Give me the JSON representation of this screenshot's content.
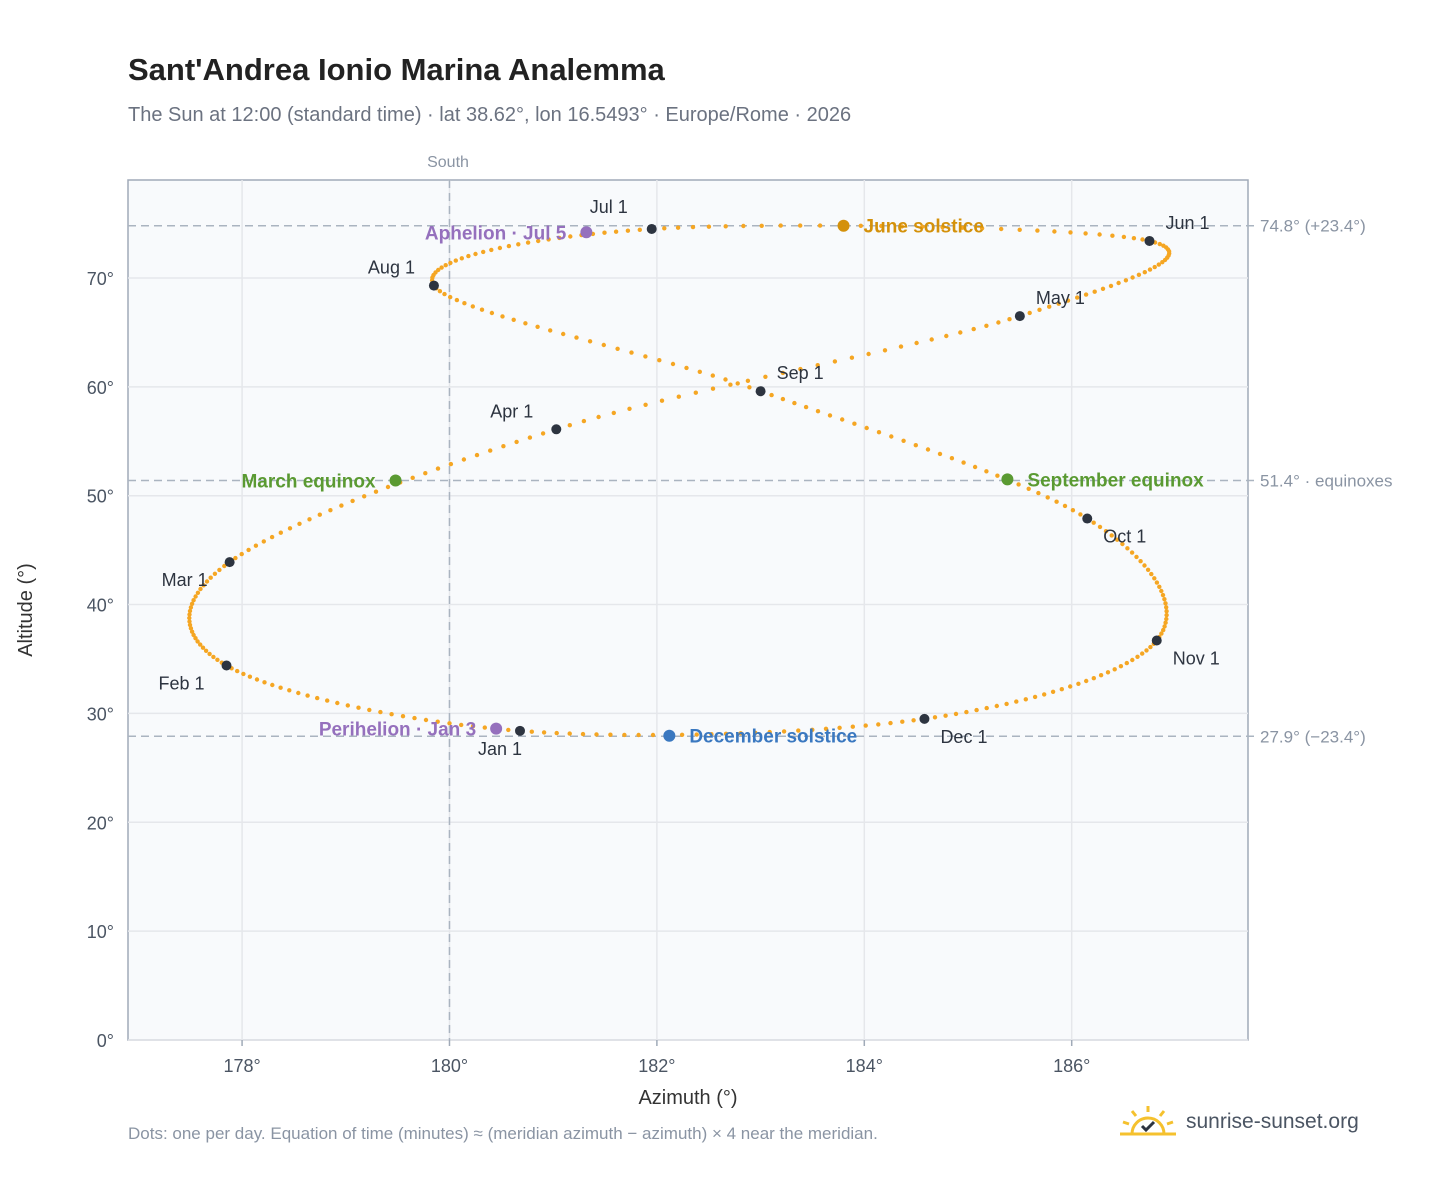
{
  "title": "Sant'Andrea Ionio Marina Analemma",
  "subtitle": "The Sun at 12:00 (standard time) · lat 38.62°, lon 16.5493° · Europe/Rome · 2026",
  "footnote": "Dots: one per day. Equation of time (minutes) ≈ (meridian azimuth − azimuth) × 4 near the meridian.",
  "brand": "sunrise-sunset.org",
  "colors": {
    "curve": "#f5a623",
    "month_marker": "#2d3440",
    "june_solstice": "#d4910a",
    "december_solstice": "#3a78c0",
    "equinox": "#5a9a32",
    "apsis": "#9570bd",
    "grid": "#e5e7eb",
    "reference_line": "#aab4c0",
    "plot_background": "#f8fafc"
  },
  "chart_data": {
    "type": "scatter",
    "xlabel": "Azimuth (°)",
    "ylabel": "Altitude (°)",
    "xlim": [
      176.9,
      187.7
    ],
    "ylim": [
      0,
      79
    ],
    "x_ticks": [
      178,
      180,
      182,
      184,
      186
    ],
    "x_tick_labels": [
      "178°",
      "180°",
      "182°",
      "184°",
      "186°"
    ],
    "y_ticks": [
      0,
      10,
      20,
      30,
      40,
      50,
      60,
      70
    ],
    "y_tick_labels": [
      "0°",
      "10°",
      "20°",
      "30°",
      "40°",
      "50°",
      "60°",
      "70°"
    ],
    "grid": true,
    "meridian": {
      "azimuth": 180,
      "label": "South"
    },
    "reference_lines": [
      {
        "altitude": 74.8,
        "label": "74.8° (+23.4°)"
      },
      {
        "altitude": 51.4,
        "label": "51.4° · equinoxes"
      },
      {
        "altitude": 27.9,
        "label": "27.9° (−23.4°)"
      }
    ],
    "daily_positions": [
      {
        "label": "Jan 1",
        "azimuth": 180.68,
        "altitude": 28.4
      },
      {
        "label": "Feb 1",
        "azimuth": 177.85,
        "altitude": 34.4
      },
      {
        "label": "Mar 1",
        "azimuth": 177.88,
        "altitude": 43.9
      },
      {
        "label": "Apr 1",
        "azimuth": 181.03,
        "altitude": 56.1
      },
      {
        "label": "May 1",
        "azimuth": 185.5,
        "altitude": 66.5
      },
      {
        "label": "Jun 1",
        "azimuth": 186.75,
        "altitude": 73.4
      },
      {
        "label": "Jul 1",
        "azimuth": 181.95,
        "altitude": 74.5
      },
      {
        "label": "Aug 1",
        "azimuth": 179.85,
        "altitude": 69.3
      },
      {
        "label": "Sep 1",
        "azimuth": 183.0,
        "altitude": 59.6
      },
      {
        "label": "Oct 1",
        "azimuth": 186.15,
        "altitude": 47.9
      },
      {
        "label": "Nov 1",
        "azimuth": 186.82,
        "altitude": 36.7
      },
      {
        "label": "Dec 1",
        "azimuth": 184.58,
        "altitude": 29.5
      }
    ],
    "special_points": [
      {
        "label": "June solstice",
        "azimuth": 183.8,
        "altitude": 74.8,
        "kind": "june_solstice"
      },
      {
        "label": "December solstice",
        "azimuth": 182.12,
        "altitude": 27.95,
        "kind": "december_solstice"
      },
      {
        "label": "March equinox",
        "azimuth": 179.48,
        "altitude": 51.4,
        "kind": "equinox"
      },
      {
        "label": "September equinox",
        "azimuth": 185.38,
        "altitude": 51.5,
        "kind": "equinox"
      },
      {
        "label": "Aphelion · Jul 5",
        "azimuth": 181.32,
        "altitude": 74.2,
        "kind": "apsis"
      },
      {
        "label": "Perihelion · Jan 3",
        "azimuth": 180.45,
        "altitude": 28.6,
        "kind": "apsis"
      }
    ]
  }
}
